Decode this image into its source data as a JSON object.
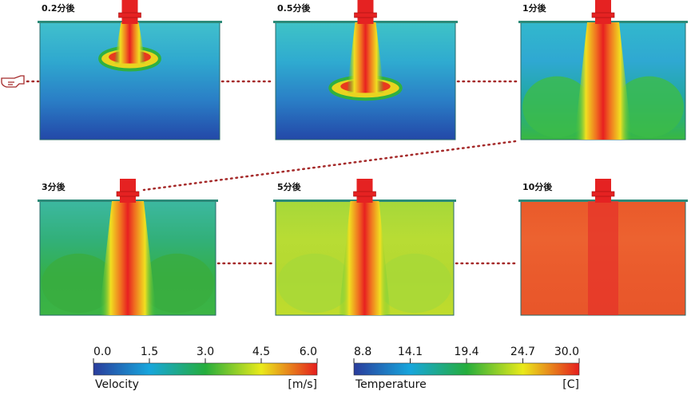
{
  "panels": [
    {
      "label": "0.2分後"
    },
    {
      "label": "0.5分後"
    },
    {
      "label": "1分後"
    },
    {
      "label": "3分後"
    },
    {
      "label": "5分後"
    },
    {
      "label": "10分後"
    }
  ],
  "colorbars": [
    {
      "title": "Velocity",
      "unit": "[m/s]",
      "ticks": [
        {
          "value": 0,
          "label": "0.0"
        },
        {
          "value": 1.5,
          "label": "1.5"
        },
        {
          "value": 3,
          "label": "3.0"
        },
        {
          "value": 4.5,
          "label": "4.5"
        },
        {
          "value": 6,
          "label": "6.0"
        }
      ]
    },
    {
      "title": "Temperature",
      "unit": "[C]",
      "ticks": [
        {
          "value": 8.8,
          "label": "8.8"
        },
        {
          "value": 14.1,
          "label": "14.1"
        },
        {
          "value": 19.4,
          "label": "19.4"
        },
        {
          "value": 24.7,
          "label": "24.7"
        },
        {
          "value": 30,
          "label": "30.0"
        }
      ]
    }
  ]
}
